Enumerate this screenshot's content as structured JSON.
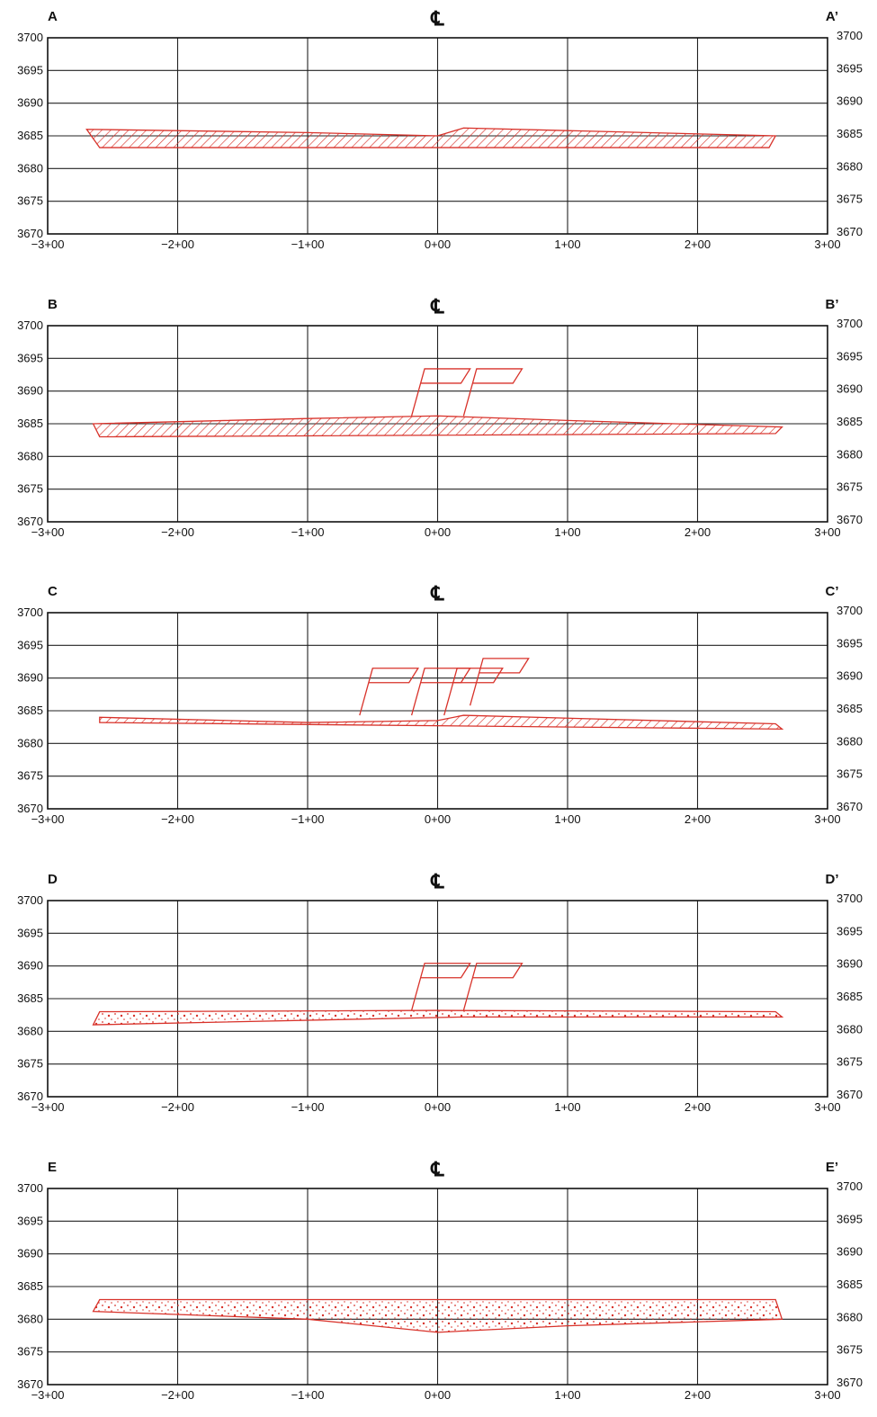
{
  "colors": {
    "linework": "#d8322a",
    "grid": "#222222",
    "background": "#ffffff"
  },
  "centerline_symbol": "℄",
  "x_tick_labels": [
    "−3+00",
    "−2+00",
    "−1+00",
    "0+00",
    "1+00",
    "2+00",
    "3+00"
  ],
  "y_tick_labels": [
    "3700",
    "3695",
    "3690",
    "3685",
    "3680",
    "3675",
    "3670"
  ],
  "sections": [
    {
      "id": "A",
      "left_label": "A",
      "right_label": "A’",
      "fill_pattern": "hatch",
      "structures": "none"
    },
    {
      "id": "B",
      "left_label": "B",
      "right_label": "B’",
      "fill_pattern": "hatch",
      "structures": "flags-at-centerline"
    },
    {
      "id": "C",
      "left_label": "C",
      "right_label": "C’",
      "fill_pattern": "hatch",
      "structures": "flags-left-and-centerline"
    },
    {
      "id": "D",
      "left_label": "D",
      "right_label": "D’",
      "fill_pattern": "stipple",
      "structures": "flags-at-centerline"
    },
    {
      "id": "E",
      "left_label": "E",
      "right_label": "E’",
      "fill_pattern": "stipple",
      "structures": "none"
    }
  ],
  "chart_data": [
    {
      "type": "cross-section",
      "section": "A–A’",
      "xlim": [
        "−3+00",
        "3+00"
      ],
      "ylim": [
        3670,
        3700
      ],
      "top_surface": [
        [
          -2.7,
          3686
        ],
        [
          -1.0,
          3685.5
        ],
        [
          0.0,
          3685
        ],
        [
          0.2,
          3686.2
        ],
        [
          2.6,
          3685
        ]
      ],
      "bottom_surface": [
        [
          -2.6,
          3683.2
        ],
        [
          2.55,
          3683.2
        ]
      ],
      "fill": "hatch"
    },
    {
      "type": "cross-section",
      "section": "B–B’",
      "xlim": [
        "−3+00",
        "3+00"
      ],
      "ylim": [
        3670,
        3700
      ],
      "top_surface": [
        [
          -2.65,
          3685
        ],
        [
          -1.0,
          3685.8
        ],
        [
          0.0,
          3686.2
        ],
        [
          1.0,
          3685.5
        ],
        [
          2.65,
          3684.5
        ]
      ],
      "bottom_surface": [
        [
          -2.6,
          3683
        ],
        [
          2.6,
          3683.5
        ]
      ],
      "fill": "hatch"
    },
    {
      "type": "cross-section",
      "section": "C–C’",
      "xlim": [
        "−3+00",
        "3+00"
      ],
      "ylim": [
        3670,
        3700
      ],
      "top_surface": [
        [
          -2.6,
          3684
        ],
        [
          -1.0,
          3683.2
        ],
        [
          0.0,
          3683.5
        ],
        [
          0.2,
          3684.3
        ],
        [
          2.6,
          3683
        ]
      ],
      "bottom_surface": [
        [
          -2.6,
          3683.2
        ],
        [
          2.65,
          3682.2
        ]
      ],
      "fill": "hatch"
    },
    {
      "type": "cross-section",
      "section": "D–D’",
      "xlim": [
        "−3+00",
        "3+00"
      ],
      "ylim": [
        3670,
        3700
      ],
      "top_surface": [
        [
          -2.6,
          3683
        ],
        [
          0.0,
          3683.2
        ],
        [
          2.6,
          3683
        ]
      ],
      "bottom_surface": [
        [
          -2.65,
          3681
        ],
        [
          0.2,
          3682.2
        ],
        [
          2.65,
          3682.2
        ]
      ],
      "fill": "stipple"
    },
    {
      "type": "cross-section",
      "section": "E–E’",
      "xlim": [
        "−3+00",
        "3+00"
      ],
      "ylim": [
        3670,
        3700
      ],
      "top_surface": [
        [
          -2.6,
          3683
        ],
        [
          2.6,
          3683
        ]
      ],
      "bottom_surface": [
        [
          -2.65,
          3681.2
        ],
        [
          -1.0,
          3680
        ],
        [
          0.0,
          3678
        ],
        [
          1.0,
          3679
        ],
        [
          2.65,
          3680
        ]
      ],
      "fill": "stipple"
    }
  ]
}
